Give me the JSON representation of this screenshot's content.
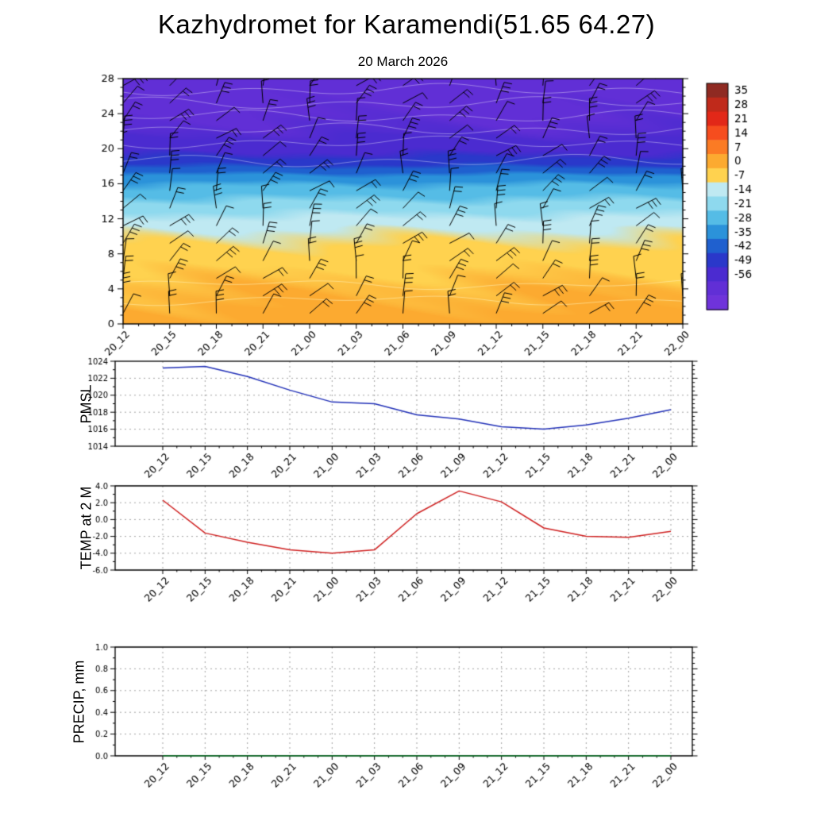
{
  "title": "Kazhydromet for Karamendi(51.65 64.27)",
  "subtitle": "20 March 2026",
  "time_labels": [
    "20_12",
    "20_15",
    "20_18",
    "20_21",
    "21_00",
    "21_03",
    "21_06",
    "21_09",
    "21_12",
    "21_15",
    "21_18",
    "21_21",
    "22_00"
  ],
  "chart_data": [
    {
      "type": "heatmap",
      "name": "temperature-wind-height-time-cross-section",
      "title": "20 March 2026",
      "x_labels": [
        "20_12",
        "20_15",
        "20_18",
        "20_21",
        "21_00",
        "21_03",
        "21_06",
        "21_09",
        "21_12",
        "21_15",
        "21_18",
        "21_21",
        "22_00"
      ],
      "y_ticks": [
        0,
        4,
        8,
        12,
        16,
        20,
        24,
        28
      ],
      "y_tick_labels": [
        "0",
        "4",
        "8",
        "12",
        "16",
        "20",
        "24",
        "28"
      ],
      "ylim": [
        0,
        28
      ],
      "colorbar_levels": [
        35,
        28,
        21,
        14,
        7,
        0,
        -7,
        -14,
        -21,
        -28,
        -35,
        -42,
        -49,
        -56
      ],
      "colorbar_colors": [
        "#8f2a22",
        "#c02a1b",
        "#e22818",
        "#f64d1e",
        "#fb7b24",
        "#fcaa30",
        "#ffd24f",
        "#bfe9f2",
        "#8ed9ee",
        "#55bce6",
        "#2b92da",
        "#1f60cf",
        "#2a38ca",
        "#4b2bd0",
        "#612fd6",
        "#6f33da"
      ],
      "temp_profile": [
        [
          0,
          3
        ],
        [
          2,
          1.5
        ],
        [
          4,
          0.5
        ],
        [
          6,
          -1.5
        ],
        [
          8,
          -4
        ],
        [
          10,
          -7
        ],
        [
          11,
          -9
        ],
        [
          12,
          -12.5
        ],
        [
          13,
          -16
        ],
        [
          14,
          -20
        ],
        [
          15,
          -24
        ],
        [
          16,
          -28
        ],
        [
          17,
          -34
        ],
        [
          18,
          -42
        ],
        [
          19,
          -48
        ],
        [
          20,
          -52
        ],
        [
          22,
          -56
        ],
        [
          24,
          -58
        ],
        [
          28,
          -60
        ]
      ],
      "wind_barbs": true
    },
    {
      "type": "line",
      "name": "pmsl-timeseries",
      "ylabel": "PMSL",
      "x": [
        "20_12",
        "20_15",
        "20_18",
        "20_21",
        "21_00",
        "21_03",
        "21_06",
        "21_09",
        "21_12",
        "21_15",
        "21_18",
        "21_21",
        "22_00"
      ],
      "values": [
        1023.2,
        1023.4,
        1022.2,
        1020.6,
        1019.2,
        1019.0,
        1017.7,
        1017.2,
        1016.3,
        1016.0,
        1016.5,
        1017.3,
        1018.3
      ],
      "ylim": [
        1014,
        1024
      ],
      "y_ticks": [
        1014,
        1016,
        1018,
        1020,
        1022,
        1024
      ],
      "y_tick_labels": [
        "1014",
        "1016",
        "1018",
        "1020",
        "1022",
        "1024"
      ],
      "color": "#2231b8",
      "grid": true
    },
    {
      "type": "line",
      "name": "temp-2m-timeseries",
      "ylabel": "TEMP at 2 M",
      "x": [
        "20_12",
        "20_15",
        "20_18",
        "20_21",
        "21_00",
        "21_03",
        "21_06",
        "21_09",
        "21_12",
        "21_15",
        "21_18",
        "21_21",
        "22_00"
      ],
      "values": [
        2.3,
        -1.6,
        -2.7,
        -3.6,
        -4.0,
        -3.6,
        0.7,
        3.4,
        2.1,
        -1.0,
        -2.0,
        -2.1,
        -1.4
      ],
      "ylim": [
        -6,
        4
      ],
      "y_ticks": [
        -6,
        -4,
        -2,
        0,
        2,
        4
      ],
      "y_tick_labels": [
        "-6.0",
        "-4.0",
        "-2.0",
        "0.0",
        "2.0",
        "4.0"
      ],
      "color": "#cf2020",
      "grid": true
    },
    {
      "type": "line",
      "name": "precip-timeseries",
      "ylabel": "PRECIP, mm",
      "x": [
        "20_12",
        "20_15",
        "20_18",
        "20_21",
        "21_00",
        "21_03",
        "21_06",
        "21_09",
        "21_12",
        "21_15",
        "21_18",
        "21_21",
        "22_00"
      ],
      "values": [
        0,
        0,
        0,
        0,
        0,
        0,
        0,
        0,
        0,
        0,
        0,
        0,
        0
      ],
      "ylim": [
        0,
        1
      ],
      "y_ticks": [
        0,
        0.2,
        0.4,
        0.6,
        0.8,
        1.0
      ],
      "y_tick_labels": [
        "0.0",
        "0.2",
        "0.4",
        "0.6",
        "0.8",
        "1.0"
      ],
      "color": "#0a7a28",
      "grid": true
    }
  ]
}
